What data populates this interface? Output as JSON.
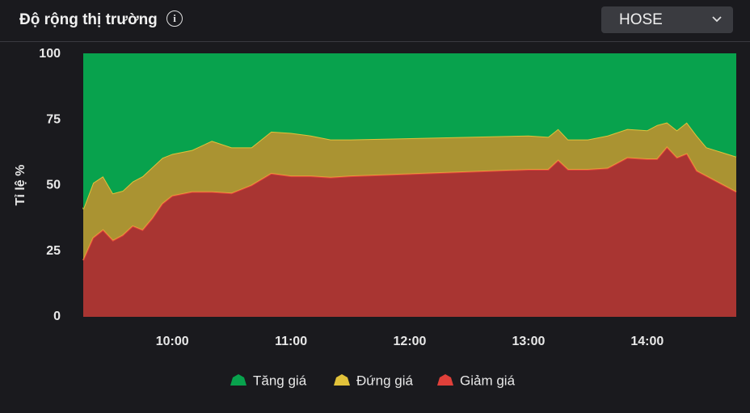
{
  "chart_data": {
    "type": "stacked-area",
    "title": "Độ rộng thị trường",
    "exchange": "HOSE",
    "y_label": "Tỉ lệ %",
    "x": [
      "09:15",
      "09:20",
      "09:25",
      "09:30",
      "09:35",
      "09:40",
      "09:45",
      "09:50",
      "09:55",
      "10:00",
      "10:10",
      "10:20",
      "10:30",
      "10:40",
      "10:50",
      "11:00",
      "11:10",
      "11:20",
      "11:30",
      "13:00",
      "13:10",
      "13:15",
      "13:20",
      "13:30",
      "13:40",
      "13:50",
      "14:00",
      "14:05",
      "14:10",
      "14:15",
      "14:20",
      "14:25",
      "14:30",
      "14:45"
    ],
    "xlim": [
      "09:15",
      "14:45"
    ],
    "xticks": [
      "10:00",
      "11:00",
      "12:00",
      "13:00",
      "14:00"
    ],
    "ylim": [
      0,
      100
    ],
    "yticks": [
      0,
      25,
      50,
      75,
      100
    ],
    "grid": false,
    "series": [
      {
        "name": "Tăng giá",
        "color": "#08a24d",
        "values": [
          59,
          49,
          46.5,
          53,
          52,
          48.5,
          46.5,
          43,
          39.5,
          38,
          36.5,
          33,
          35.5,
          35.5,
          29.5,
          30,
          31,
          32.5,
          32.5,
          31,
          31.5,
          28.5,
          32.5,
          32.5,
          31,
          28.5,
          29,
          27,
          26,
          29,
          26,
          31,
          35.5,
          39
        ]
      },
      {
        "name": "Đứng giá",
        "color": "#e2c23a",
        "values": [
          19.5,
          21,
          20.5,
          18,
          17,
          17,
          20.5,
          19.5,
          17.5,
          16,
          16,
          19.5,
          17.5,
          14.5,
          16,
          16.5,
          15.5,
          14.5,
          14,
          13,
          12.5,
          12,
          11.5,
          11.5,
          12.5,
          11,
          11,
          13,
          9.5,
          10.5,
          12,
          13.5,
          11,
          13.5
        ]
      },
      {
        "name": "Giảm giá",
        "color": "#e0403a",
        "values": [
          21.5,
          30,
          33,
          29,
          31,
          34.5,
          33,
          37.5,
          43,
          46,
          47.5,
          47.5,
          47,
          50,
          54.5,
          53.5,
          53.5,
          53,
          53.5,
          56,
          56,
          59.5,
          56,
          56,
          56.5,
          60.5,
          60,
          60,
          64.5,
          60.5,
          62,
          55.5,
          53.5,
          47.5
        ]
      }
    ]
  }
}
